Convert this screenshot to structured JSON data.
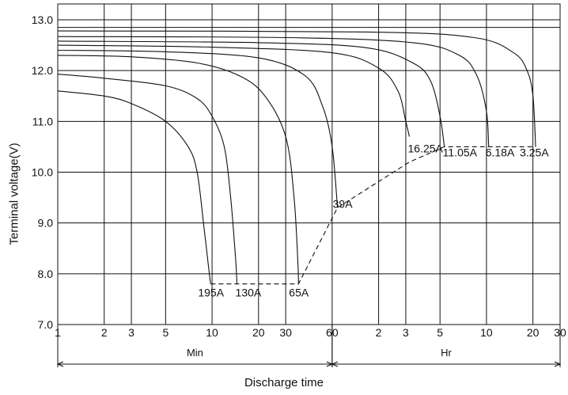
{
  "chart_data": {
    "type": "line",
    "title": "",
    "xlabel": "Discharge time",
    "ylabel": "Terminal voltage(V)",
    "ylim": [
      7.0,
      13.0
    ],
    "yticks": [
      "7.0",
      "8.0",
      "9.0",
      "10.0",
      "11.0",
      "12.0",
      "13.0"
    ],
    "x_scale": "log",
    "x_unit_note": "x values are in minutes; the axis prints minutes up to 60 and hours after",
    "xticks": [
      {
        "label": "1",
        "minutes": 1
      },
      {
        "label": "2",
        "minutes": 2
      },
      {
        "label": "3",
        "minutes": 3
      },
      {
        "label": "5",
        "minutes": 5
      },
      {
        "label": "10",
        "minutes": 10
      },
      {
        "label": "20",
        "minutes": 20
      },
      {
        "label": "30",
        "minutes": 30
      },
      {
        "label": "60",
        "minutes": 60
      },
      {
        "label": "2",
        "minutes": 120
      },
      {
        "label": "3",
        "minutes": 180
      },
      {
        "label": "5",
        "minutes": 300
      },
      {
        "label": "10",
        "minutes": 600
      },
      {
        "label": "20",
        "minutes": 1200
      },
      {
        "label": "30",
        "minutes": 1800
      }
    ],
    "time_bands": [
      {
        "label": "Min",
        "from": 1,
        "to": 60
      },
      {
        "label": "Hr",
        "from": 60,
        "to": 1800
      }
    ],
    "grid": true,
    "series": [
      {
        "name": "195A",
        "points": [
          [
            1,
            11.6
          ],
          [
            2,
            11.5
          ],
          [
            3,
            11.35
          ],
          [
            5,
            11.0
          ],
          [
            7,
            10.5
          ],
          [
            8,
            10.0
          ],
          [
            8.8,
            9.0
          ],
          [
            9.6,
            8.0
          ],
          [
            9.8,
            7.8
          ]
        ]
      },
      {
        "name": "130A",
        "points": [
          [
            1,
            11.93
          ],
          [
            2,
            11.85
          ],
          [
            5,
            11.7
          ],
          [
            8,
            11.45
          ],
          [
            10,
            11.1
          ],
          [
            12,
            10.5
          ],
          [
            13.2,
            9.5
          ],
          [
            14.2,
            8.3
          ],
          [
            14.5,
            7.8
          ]
        ]
      },
      {
        "name": "65A",
        "points": [
          [
            1,
            12.3
          ],
          [
            3,
            12.27
          ],
          [
            8,
            12.15
          ],
          [
            15,
            11.9
          ],
          [
            22,
            11.5
          ],
          [
            30,
            10.7
          ],
          [
            34,
            9.5
          ],
          [
            36,
            8.2
          ],
          [
            36.3,
            7.8
          ]
        ]
      },
      {
        "name": "39A",
        "points": [
          [
            1,
            12.4
          ],
          [
            5,
            12.37
          ],
          [
            20,
            12.25
          ],
          [
            40,
            11.9
          ],
          [
            52,
            11.3
          ],
          [
            60,
            10.5
          ],
          [
            65,
            9.3
          ]
        ]
      },
      {
        "name": "16.25A",
        "points": [
          [
            1,
            12.5
          ],
          [
            10,
            12.46
          ],
          [
            60,
            12.35
          ],
          [
            120,
            12.05
          ],
          [
            160,
            11.6
          ],
          [
            180,
            11.0
          ],
          [
            190,
            10.7
          ]
        ]
      },
      {
        "name": "11.05A",
        "points": [
          [
            1,
            12.58
          ],
          [
            20,
            12.55
          ],
          [
            100,
            12.45
          ],
          [
            200,
            12.15
          ],
          [
            260,
            11.8
          ],
          [
            300,
            11.1
          ],
          [
            320,
            10.5
          ]
        ]
      },
      {
        "name": "6.18A",
        "points": [
          [
            1,
            12.67
          ],
          [
            30,
            12.65
          ],
          [
            200,
            12.55
          ],
          [
            400,
            12.3
          ],
          [
            520,
            11.9
          ],
          [
            600,
            11.2
          ],
          [
            620,
            10.5
          ]
        ]
      },
      {
        "name": "3.25A",
        "points": [
          [
            1,
            12.78
          ],
          [
            100,
            12.76
          ],
          [
            500,
            12.65
          ],
          [
            900,
            12.35
          ],
          [
            1100,
            12.0
          ],
          [
            1200,
            11.5
          ],
          [
            1250,
            10.5
          ]
        ]
      },
      {
        "name": "",
        "style": "dashed",
        "points": [
          [
            9.8,
            7.8
          ],
          [
            36.3,
            7.8
          ],
          [
            65,
            9.3
          ],
          [
            190,
            10.2
          ],
          [
            320,
            10.5
          ],
          [
            1250,
            10.5
          ]
        ]
      }
    ],
    "annotations": [
      "195A",
      "130A",
      "65A",
      "39A",
      "16.25A",
      "11.05A",
      "6.18A",
      "3.25A"
    ],
    "extra_gridlines": [
      12.85
    ]
  }
}
